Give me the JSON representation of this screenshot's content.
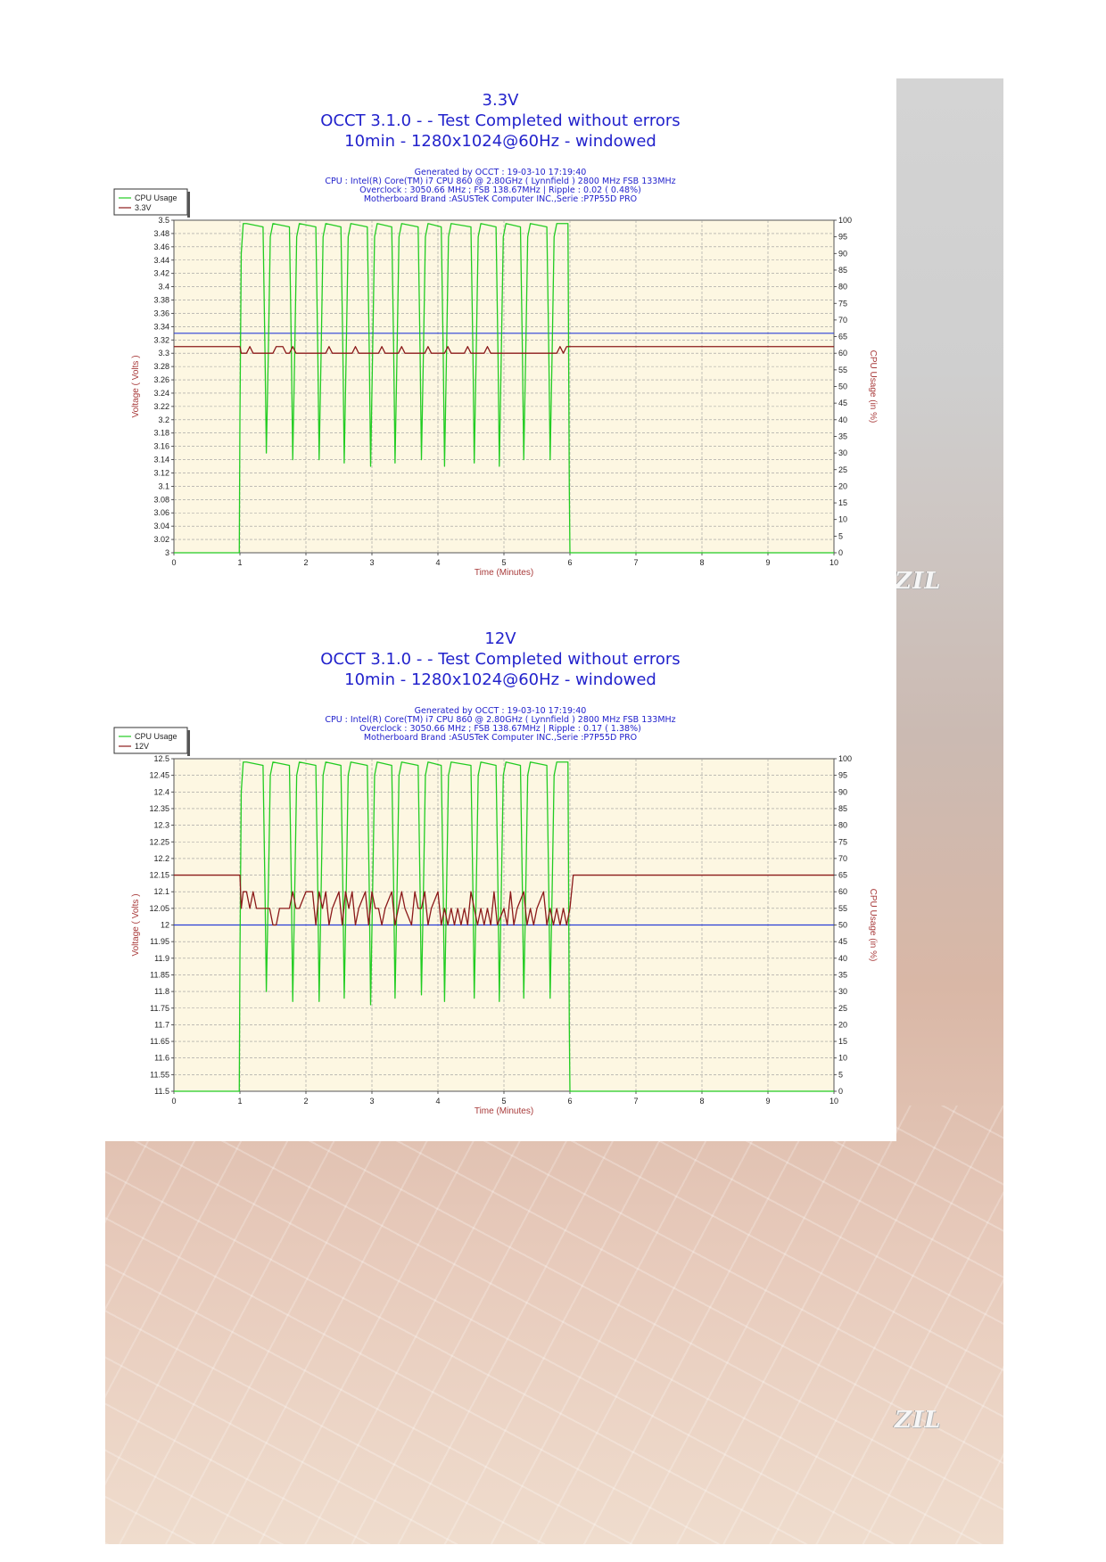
{
  "background": {
    "panel_color": "#d0d0d0",
    "logo_text": "ZIL"
  },
  "chart_data": [
    {
      "type": "line",
      "title": "3.3V",
      "subtitle": "OCCT 3.1.0 -  - Test Completed without errors",
      "subtitle2": "10min - 1280x1024@60Hz - windowed",
      "info_lines": [
        "Generated by OCCT : 19-03-10 17:19:40",
        "CPU : Intel(R) Core(TM) i7 CPU 860 @ 2.80GHz ( Lynnfield ) 2800 MHz FSB 133MHz",
        "Overclock : 3050.66 MHz ; FSB 138.67MHz | Ripple : 0.02 ( 0.48%)",
        "Motherboard Brand :ASUSTeK Computer INC.,Serie :P7P55D PRO"
      ],
      "xlabel": "Time (Minutes)",
      "ylabel": "Voltage ( Volts )",
      "y2label": "CPU Usage (in %)",
      "xlim": [
        0,
        10
      ],
      "ylim": [
        3,
        3.5
      ],
      "y2lim": [
        0,
        100
      ],
      "x_ticks": [
        0,
        1,
        2,
        3,
        4,
        5,
        6,
        7,
        8,
        9,
        10
      ],
      "y_ticks": [
        "3",
        "3.02",
        "3.04",
        "3.06",
        "3.08",
        "3.1",
        "3.12",
        "3.14",
        "3.16",
        "3.18",
        "3.2",
        "3.22",
        "3.24",
        "3.26",
        "3.28",
        "3.3",
        "3.32",
        "3.34",
        "3.36",
        "3.38",
        "3.4",
        "3.42",
        "3.44",
        "3.46",
        "3.48",
        "3.5"
      ],
      "y2_ticks": [
        0,
        5,
        10,
        15,
        20,
        25,
        30,
        35,
        40,
        45,
        50,
        55,
        60,
        65,
        70,
        75,
        80,
        85,
        90,
        95,
        100
      ],
      "reference_line": 3.33,
      "grid": true,
      "legend_position": "top-left",
      "series": [
        {
          "name": "CPU Usage",
          "color": "#22cc22",
          "axis": "right",
          "x": [
            0,
            0.99,
            1.0,
            1.02,
            1.05,
            1.1,
            1.35,
            1.38,
            1.4,
            1.43,
            1.46,
            1.5,
            1.75,
            1.78,
            1.8,
            1.83,
            1.86,
            1.9,
            2.15,
            2.18,
            2.2,
            2.23,
            2.26,
            2.3,
            2.53,
            2.56,
            2.58,
            2.61,
            2.64,
            2.68,
            2.93,
            2.96,
            2.98,
            3.01,
            3.04,
            3.08,
            3.3,
            3.33,
            3.35,
            3.38,
            3.41,
            3.45,
            3.7,
            3.73,
            3.75,
            3.78,
            3.81,
            3.85,
            4.05,
            4.08,
            4.1,
            4.13,
            4.16,
            4.2,
            4.5,
            4.53,
            4.55,
            4.58,
            4.61,
            4.65,
            4.88,
            4.91,
            4.93,
            4.96,
            4.99,
            5.03,
            5.25,
            5.28,
            5.3,
            5.33,
            5.36,
            5.4,
            5.65,
            5.68,
            5.7,
            5.73,
            5.76,
            5.8,
            5.97,
            5.99,
            6.0,
            10
          ],
          "values": [
            0,
            0,
            40,
            90,
            99,
            99,
            98,
            60,
            30,
            60,
            95,
            99,
            98,
            60,
            28,
            60,
            95,
            99,
            98,
            60,
            28,
            60,
            95,
            99,
            98,
            60,
            27,
            60,
            95,
            99,
            98,
            60,
            26,
            60,
            95,
            99,
            98,
            60,
            27,
            60,
            95,
            99,
            98,
            60,
            28,
            60,
            95,
            99,
            98,
            60,
            26,
            60,
            95,
            99,
            98,
            60,
            27,
            60,
            95,
            99,
            98,
            60,
            26,
            60,
            95,
            99,
            98,
            60,
            28,
            60,
            95,
            99,
            98,
            60,
            28,
            60,
            95,
            99,
            99,
            20,
            0,
            0
          ]
        },
        {
          "name": "3.3V",
          "color": "#8b1a1a",
          "axis": "left",
          "x": [
            0,
            1.0,
            1.02,
            1.1,
            1.15,
            1.2,
            1.25,
            1.3,
            1.5,
            1.55,
            1.6,
            1.65,
            1.7,
            1.75,
            1.8,
            1.85,
            1.9,
            2.3,
            2.35,
            2.4,
            2.45,
            2.5,
            2.7,
            2.75,
            2.8,
            2.85,
            2.9,
            3.1,
            3.15,
            3.2,
            3.25,
            3.3,
            3.4,
            3.45,
            3.5,
            3.55,
            3.6,
            3.8,
            3.85,
            3.9,
            3.95,
            4.0,
            4.1,
            4.15,
            4.2,
            4.25,
            4.3,
            4.4,
            4.45,
            4.5,
            4.55,
            4.6,
            4.7,
            4.75,
            4.8,
            4.85,
            4.9,
            5.0,
            5.05,
            5.1,
            5.15,
            5.2,
            5.8,
            5.85,
            5.9,
            5.95,
            6.0,
            10
          ],
          "values": [
            3.31,
            3.31,
            3.3,
            3.3,
            3.31,
            3.3,
            3.3,
            3.3,
            3.3,
            3.31,
            3.31,
            3.31,
            3.3,
            3.3,
            3.31,
            3.3,
            3.3,
            3.3,
            3.31,
            3.3,
            3.3,
            3.3,
            3.3,
            3.31,
            3.3,
            3.3,
            3.3,
            3.3,
            3.31,
            3.3,
            3.3,
            3.3,
            3.3,
            3.31,
            3.3,
            3.3,
            3.3,
            3.3,
            3.31,
            3.3,
            3.3,
            3.3,
            3.3,
            3.31,
            3.3,
            3.3,
            3.3,
            3.3,
            3.31,
            3.3,
            3.3,
            3.3,
            3.3,
            3.31,
            3.3,
            3.3,
            3.3,
            3.3,
            3.3,
            3.3,
            3.3,
            3.3,
            3.3,
            3.31,
            3.3,
            3.31,
            3.31,
            3.31
          ]
        }
      ]
    },
    {
      "type": "line",
      "title": "12V",
      "subtitle": "OCCT 3.1.0 -  - Test Completed without errors",
      "subtitle2": "10min - 1280x1024@60Hz - windowed",
      "info_lines": [
        "Generated by OCCT : 19-03-10 17:19:40",
        "CPU : Intel(R) Core(TM) i7 CPU 860 @ 2.80GHz ( Lynnfield ) 2800 MHz FSB 133MHz",
        "Overclock : 3050.66 MHz ; FSB 138.67MHz | Ripple : 0.17 ( 1.38%)",
        "Motherboard Brand :ASUSTeK Computer INC.,Serie :P7P55D PRO"
      ],
      "xlabel": "Time (Minutes)",
      "ylabel": "Voltage ( Volts )",
      "y2label": "CPU Usage (in %)",
      "xlim": [
        0,
        10
      ],
      "ylim": [
        11.5,
        12.5
      ],
      "y2lim": [
        0,
        100
      ],
      "x_ticks": [
        0,
        1,
        2,
        3,
        4,
        5,
        6,
        7,
        8,
        9,
        10
      ],
      "y_ticks": [
        "11.5",
        "11.55",
        "11.6",
        "11.65",
        "11.7",
        "11.75",
        "11.8",
        "11.85",
        "11.9",
        "11.95",
        "12",
        "12.05",
        "12.1",
        "12.15",
        "12.2",
        "12.25",
        "12.3",
        "12.35",
        "12.4",
        "12.45",
        "12.5"
      ],
      "y2_ticks": [
        0,
        5,
        10,
        15,
        20,
        25,
        30,
        35,
        40,
        45,
        50,
        55,
        60,
        65,
        70,
        75,
        80,
        85,
        90,
        95,
        100
      ],
      "reference_line": 12.0,
      "grid": true,
      "legend_position": "top-left",
      "series": [
        {
          "name": "CPU Usage",
          "color": "#22cc22",
          "axis": "right",
          "x": [
            0,
            0.99,
            1.0,
            1.02,
            1.05,
            1.1,
            1.35,
            1.38,
            1.4,
            1.43,
            1.46,
            1.5,
            1.75,
            1.78,
            1.8,
            1.83,
            1.86,
            1.9,
            2.15,
            2.18,
            2.2,
            2.23,
            2.26,
            2.3,
            2.53,
            2.56,
            2.58,
            2.61,
            2.64,
            2.68,
            2.93,
            2.96,
            2.98,
            3.01,
            3.04,
            3.08,
            3.3,
            3.33,
            3.35,
            3.38,
            3.41,
            3.45,
            3.7,
            3.73,
            3.75,
            3.78,
            3.81,
            3.85,
            4.05,
            4.08,
            4.1,
            4.13,
            4.16,
            4.2,
            4.5,
            4.53,
            4.55,
            4.58,
            4.61,
            4.65,
            4.88,
            4.91,
            4.93,
            4.96,
            4.99,
            5.03,
            5.25,
            5.28,
            5.3,
            5.33,
            5.36,
            5.4,
            5.65,
            5.68,
            5.7,
            5.73,
            5.76,
            5.8,
            5.97,
            5.99,
            6.0,
            10
          ],
          "values": [
            0,
            0,
            40,
            90,
            99,
            99,
            98,
            60,
            30,
            60,
            95,
            99,
            98,
            60,
            27,
            60,
            95,
            99,
            98,
            60,
            27,
            60,
            95,
            99,
            98,
            60,
            28,
            60,
            95,
            99,
            98,
            60,
            26,
            60,
            95,
            99,
            98,
            60,
            28,
            60,
            95,
            99,
            98,
            60,
            29,
            60,
            95,
            99,
            98,
            60,
            27,
            60,
            95,
            99,
            98,
            60,
            28,
            60,
            95,
            99,
            98,
            60,
            27,
            60,
            95,
            99,
            98,
            60,
            28,
            60,
            95,
            99,
            98,
            60,
            28,
            60,
            95,
            99,
            99,
            20,
            0,
            0
          ]
        },
        {
          "name": "12V",
          "color": "#8b1a1a",
          "axis": "left",
          "x": [
            0,
            1.0,
            1.02,
            1.05,
            1.1,
            1.15,
            1.2,
            1.25,
            1.3,
            1.35,
            1.4,
            1.45,
            1.5,
            1.55,
            1.6,
            1.65,
            1.7,
            1.75,
            1.8,
            1.85,
            1.9,
            2.0,
            2.05,
            2.1,
            2.15,
            2.2,
            2.25,
            2.3,
            2.35,
            2.4,
            2.5,
            2.55,
            2.6,
            2.65,
            2.7,
            2.75,
            2.8,
            2.9,
            2.95,
            3.0,
            3.05,
            3.1,
            3.15,
            3.2,
            3.3,
            3.35,
            3.4,
            3.45,
            3.5,
            3.6,
            3.65,
            3.7,
            3.75,
            3.8,
            3.85,
            3.9,
            4.0,
            4.05,
            4.1,
            4.15,
            4.2,
            4.25,
            4.3,
            4.35,
            4.4,
            4.45,
            4.5,
            4.6,
            4.65,
            4.7,
            4.75,
            4.8,
            4.85,
            4.9,
            5.0,
            5.05,
            5.1,
            5.15,
            5.2,
            5.3,
            5.35,
            5.4,
            5.45,
            5.5,
            5.6,
            5.65,
            5.7,
            5.75,
            5.8,
            5.85,
            5.9,
            5.95,
            6.0,
            6.05,
            10
          ],
          "values": [
            12.15,
            12.15,
            12.05,
            12.1,
            12.1,
            12.05,
            12.1,
            12.05,
            12.05,
            12.05,
            12.05,
            12.05,
            12.0,
            12.0,
            12.05,
            12.05,
            12.05,
            12.05,
            12.1,
            12.05,
            12.05,
            12.1,
            12.1,
            12.1,
            12.0,
            12.1,
            12.05,
            12.1,
            12.0,
            12.05,
            12.1,
            12.0,
            12.1,
            12.05,
            12.1,
            12.0,
            12.05,
            12.1,
            12.0,
            12.1,
            12.05,
            12.05,
            12.0,
            12.05,
            12.1,
            12.0,
            12.05,
            12.1,
            12.05,
            12.0,
            12.1,
            12.05,
            12.05,
            12.1,
            12.0,
            12.05,
            12.1,
            12.0,
            12.05,
            12.0,
            12.05,
            12.0,
            12.05,
            12.0,
            12.05,
            12.0,
            12.1,
            12.0,
            12.05,
            12.0,
            12.05,
            12.0,
            12.1,
            12.0,
            12.05,
            12.0,
            12.1,
            12.0,
            12.05,
            12.1,
            12.0,
            12.05,
            12.0,
            12.05,
            12.1,
            12.0,
            12.05,
            12.0,
            12.05,
            12.0,
            12.05,
            12.0,
            12.05,
            12.15,
            12.15
          ]
        }
      ]
    }
  ]
}
